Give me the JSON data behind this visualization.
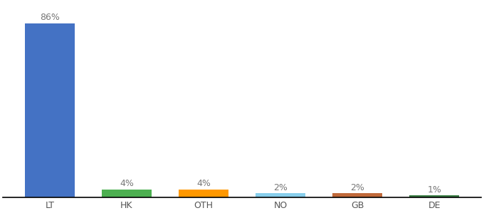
{
  "categories": [
    "LT",
    "HK",
    "OTH",
    "NO",
    "GB",
    "DE"
  ],
  "values": [
    86,
    4,
    4,
    2,
    2,
    1
  ],
  "bar_colors": [
    "#4472c4",
    "#4caf50",
    "#ff9800",
    "#87ceeb",
    "#c0693a",
    "#3a7d44"
  ],
  "labels": [
    "86%",
    "4%",
    "4%",
    "2%",
    "2%",
    "1%"
  ],
  "ylim": [
    0,
    96
  ],
  "background_color": "#ffffff",
  "label_fontsize": 9,
  "tick_fontsize": 9,
  "bar_width": 0.65
}
